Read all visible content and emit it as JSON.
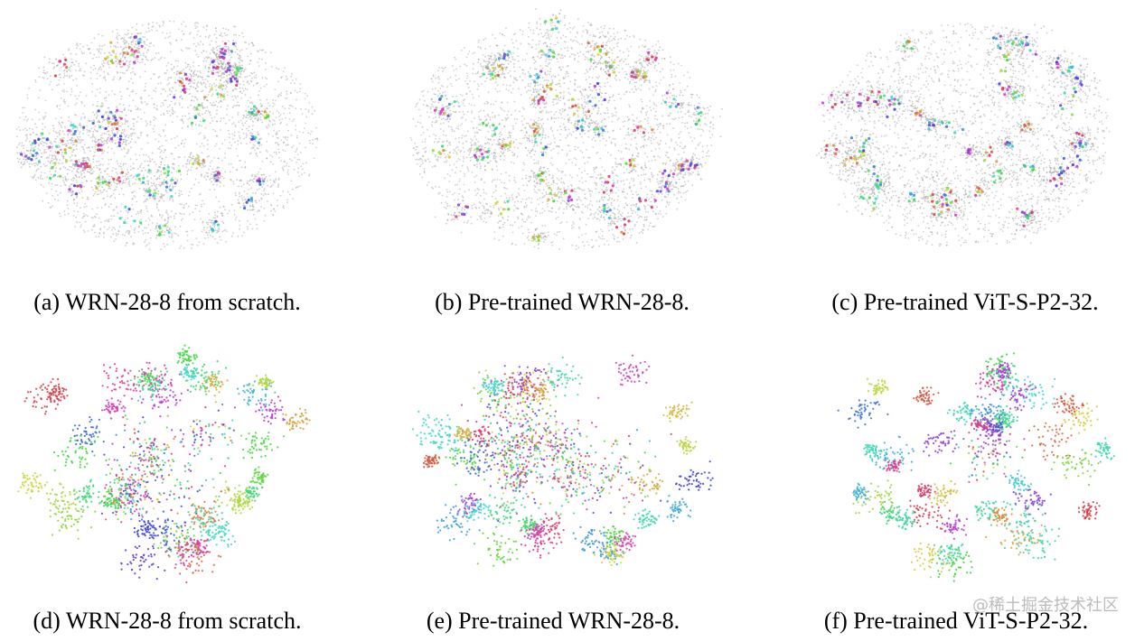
{
  "figure": {
    "panels": [
      {
        "caption": "(a) WRN-28-8 from scratch."
      },
      {
        "caption": "(b) Pre-trained WRN-28-8."
      },
      {
        "caption": "(c) Pre-trained ViT-S-P2-32."
      },
      {
        "caption": "(d) WRN-28-8 from scratch."
      },
      {
        "caption": "(e) Pre-trained WRN-28-8."
      },
      {
        "caption": "(f) Pre-trained ViT-S-P2-32."
      }
    ]
  },
  "watermark": "@稀土掘金技术社区"
}
